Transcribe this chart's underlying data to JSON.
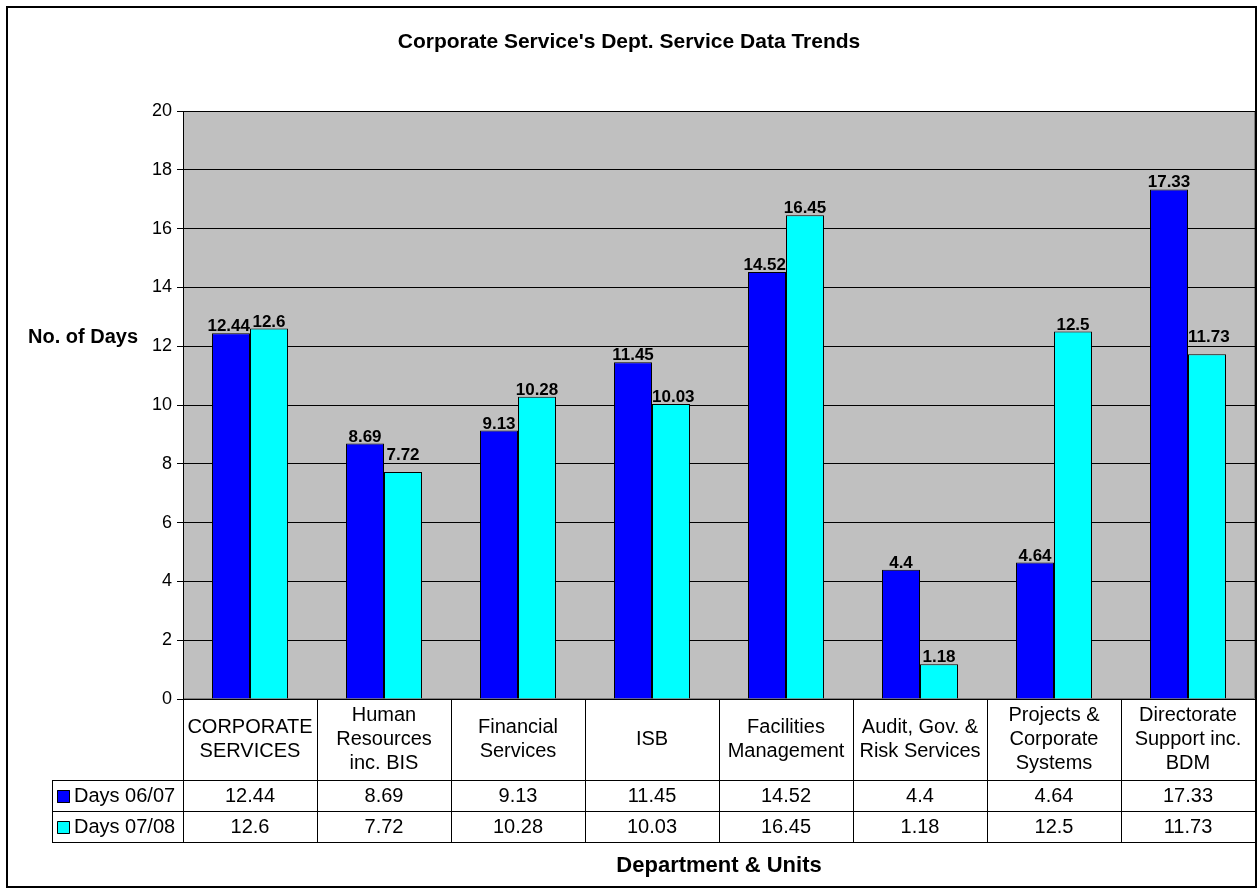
{
  "chart_data": {
    "type": "bar",
    "title": "Corporate Service's Dept. Service Data Trends",
    "xlabel": "Department & Units",
    "ylabel": "No. of Days",
    "categories": [
      "CORPORATE SERVICES",
      "Human Resources inc. BIS",
      "Financial Services",
      "ISB",
      "Facilities Management",
      "Audit, Gov. & Risk Services",
      "Projects & Corporate Systems",
      "Directorate Support inc. BDM"
    ],
    "series": [
      {
        "name": "Days 06/07",
        "color": "#0000ff",
        "values": [
          12.44,
          8.69,
          9.13,
          11.45,
          14.52,
          4.4,
          4.64,
          17.33
        ]
      },
      {
        "name": "Days 07/08",
        "color": "#00ffff",
        "values": [
          12.6,
          7.72,
          10.28,
          10.03,
          16.45,
          1.18,
          12.5,
          11.73
        ]
      }
    ],
    "ylim": [
      0,
      20
    ],
    "yticks": [
      0,
      2,
      4,
      6,
      8,
      10,
      12,
      14,
      16,
      18,
      20
    ],
    "grid": "y",
    "legend": "bottom",
    "data_labels": true,
    "annotations": [
      "12.44",
      "8.69",
      "9.13",
      "11.45",
      "14.52",
      "4.4",
      "4.64",
      "17.33",
      "12.6",
      "7.72",
      "10.28",
      "10.03",
      "16.45",
      "1.18",
      "12.5",
      "11.73"
    ]
  }
}
